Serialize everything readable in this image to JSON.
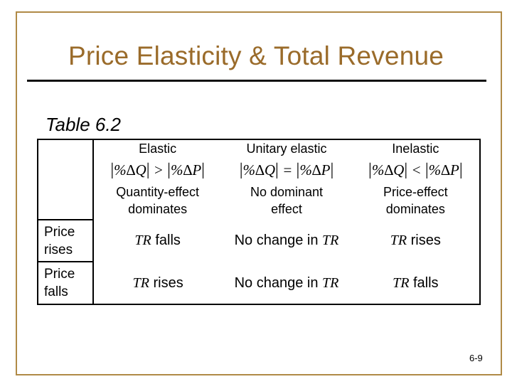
{
  "slide": {
    "title": "Price Elasticity & Total Revenue",
    "table_label": "Table 6.2",
    "page_number": "6-9"
  },
  "table": {
    "columns": [
      {
        "label": "Elastic",
        "formula": {
          "left": "%∆Q",
          "op": ">",
          "right": "%∆P"
        },
        "effect_line1": "Quantity-effect",
        "effect_line2": "dominates"
      },
      {
        "label": "Unitary elastic",
        "formula": {
          "left": "%∆Q",
          "op": "=",
          "right": "%∆P"
        },
        "effect_line1": "No dominant",
        "effect_line2": "effect"
      },
      {
        "label": "Inelastic",
        "formula": {
          "left": "%∆Q",
          "op": "<",
          "right": "%∆P"
        },
        "effect_line1": "Price-effect",
        "effect_line2": "dominates"
      }
    ],
    "rows": [
      {
        "label_line1": "Price",
        "label_line2": "rises",
        "cells": [
          {
            "pre": "",
            "tr": "TR",
            "post": " falls"
          },
          {
            "pre": "No change in ",
            "tr": "TR",
            "post": ""
          },
          {
            "pre": "",
            "tr": "TR",
            "post": " rises"
          }
        ]
      },
      {
        "label_line1": "Price",
        "label_line2": "falls",
        "cells": [
          {
            "pre": "",
            "tr": "TR",
            "post": " rises"
          },
          {
            "pre": "No change in ",
            "tr": "TR",
            "post": ""
          },
          {
            "pre": "",
            "tr": "TR",
            "post": " falls"
          }
        ]
      }
    ]
  },
  "colors": {
    "title": "#9a6b2a",
    "frame": "#b08a46"
  }
}
